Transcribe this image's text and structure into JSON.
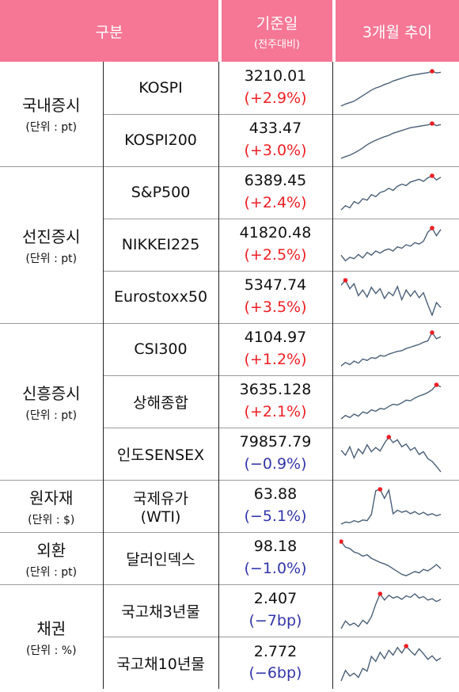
{
  "header": {
    "col_category": "구분",
    "col_base_main": "기준일",
    "col_base_sub": "(전주대비)",
    "col_trend": "3개월 추이"
  },
  "colors": {
    "header_bg": "#f57795",
    "up": "#ee1f24",
    "down": "#3236a8",
    "line": "#4a5f78",
    "marker": "#ee1f24"
  },
  "groups": [
    {
      "name": "국내증시",
      "unit": "(단위 : pt)",
      "items": [
        {
          "name": "KOSPI",
          "value": "3210.01",
          "change": "(+2.9%)",
          "dir": "up",
          "trend": [
            0,
            6,
            10,
            14,
            22,
            30,
            38,
            46,
            52,
            56,
            62,
            66,
            72,
            76,
            80,
            84,
            88,
            90,
            92,
            94,
            96,
            100,
            95,
            97
          ]
        },
        {
          "name": "KOSPI200",
          "value": "433.47",
          "change": "(+3.0%)",
          "dir": "up",
          "trend": [
            0,
            5,
            9,
            15,
            22,
            30,
            39,
            46,
            52,
            57,
            62,
            66,
            72,
            76,
            80,
            84,
            88,
            90,
            92,
            94,
            96,
            100,
            94,
            97
          ]
        }
      ]
    },
    {
      "name": "선진증시",
      "unit": "(단위 : pt)",
      "items": [
        {
          "name": "S&P500",
          "value": "6389.45",
          "change": "(+2.4%)",
          "dir": "up",
          "trend": [
            2,
            14,
            8,
            26,
            20,
            34,
            30,
            46,
            40,
            52,
            56,
            64,
            58,
            70,
            76,
            72,
            82,
            86,
            90,
            84,
            94,
            100,
            88,
            96
          ]
        },
        {
          "name": "NIKKEI225",
          "value": "41820.48",
          "change": "(+2.5%)",
          "dir": "up",
          "trend": [
            22,
            6,
            16,
            12,
            24,
            14,
            30,
            22,
            34,
            28,
            36,
            40,
            34,
            46,
            42,
            52,
            48,
            58,
            54,
            62,
            88,
            100,
            78,
            96
          ]
        },
        {
          "name": "Eurostoxx50",
          "value": "5347.74",
          "change": "(+3.5%)",
          "dir": "up",
          "trend": [
            86,
            100,
            76,
            90,
            56,
            72,
            52,
            80,
            62,
            76,
            48,
            66,
            56,
            82,
            44,
            72,
            54,
            70,
            50,
            64,
            30,
            0,
            36,
            22
          ]
        }
      ]
    },
    {
      "name": "신흥증시",
      "unit": "(단위 : pt)",
      "items": [
        {
          "name": "CSI300",
          "value": "4104.97",
          "change": "(+1.2%)",
          "dir": "up",
          "trend": [
            4,
            14,
            8,
            18,
            12,
            24,
            20,
            28,
            26,
            34,
            32,
            38,
            42,
            46,
            48,
            54,
            58,
            62,
            66,
            72,
            76,
            100,
            82,
            88
          ]
        },
        {
          "name": "상해종합",
          "value": "3635.128",
          "change": "(+2.1%)",
          "dir": "up",
          "trend": [
            2,
            12,
            6,
            16,
            10,
            22,
            18,
            28,
            24,
            32,
            30,
            38,
            44,
            42,
            48,
            56,
            54,
            62,
            68,
            72,
            78,
            86,
            100,
            94
          ]
        },
        {
          "name": "인도SENSEX",
          "value": "79857.79",
          "change": "(−0.9%)",
          "dir": "down",
          "trend": [
            62,
            48,
            72,
            40,
            66,
            52,
            78,
            58,
            70,
            60,
            82,
            100,
            84,
            92,
            72,
            80,
            62,
            70,
            50,
            58,
            38,
            30,
            16,
            0
          ]
        }
      ]
    },
    {
      "name": "원자재",
      "unit": "(단위 : $)",
      "items": [
        {
          "name": "국제유가",
          "name2": "(WTI)",
          "value": "63.88",
          "change": "(−5.1%)",
          "dir": "down",
          "trend": [
            0,
            6,
            4,
            10,
            6,
            12,
            10,
            28,
            96,
            100,
            74,
            98,
            30,
            40,
            34,
            38,
            30,
            36,
            28,
            34,
            26,
            30,
            24,
            28
          ]
        }
      ]
    },
    {
      "name": "외환",
      "unit": "(단위 : pt)",
      "items": [
        {
          "name": "달러인덱스",
          "value": "98.18",
          "change": "(−1.0%)",
          "dir": "down",
          "trend": [
            100,
            84,
            80,
            70,
            66,
            58,
            62,
            52,
            46,
            40,
            36,
            30,
            22,
            14,
            6,
            2,
            8,
            14,
            10,
            20,
            16,
            24,
            34,
            22
          ]
        }
      ]
    },
    {
      "name": "채권",
      "unit": "(단위 : %)",
      "items": [
        {
          "name": "국고채3년물",
          "value": "2.407",
          "change": "(−7bp)",
          "dir": "down",
          "trend": [
            0,
            22,
            10,
            16,
            6,
            24,
            14,
            34,
            70,
            100,
            82,
            96,
            88,
            92,
            84,
            94,
            90,
            100,
            88,
            92,
            82,
            86,
            78,
            84
          ]
        },
        {
          "name": "국고채10년물",
          "value": "2.772",
          "change": "(−6bp)",
          "dir": "down",
          "trend": [
            0,
            30,
            14,
            22,
            10,
            36,
            28,
            70,
            56,
            82,
            64,
            88,
            74,
            96,
            80,
            100,
            86,
            74,
            92,
            78,
            62,
            72,
            58,
            66
          ]
        }
      ]
    }
  ]
}
